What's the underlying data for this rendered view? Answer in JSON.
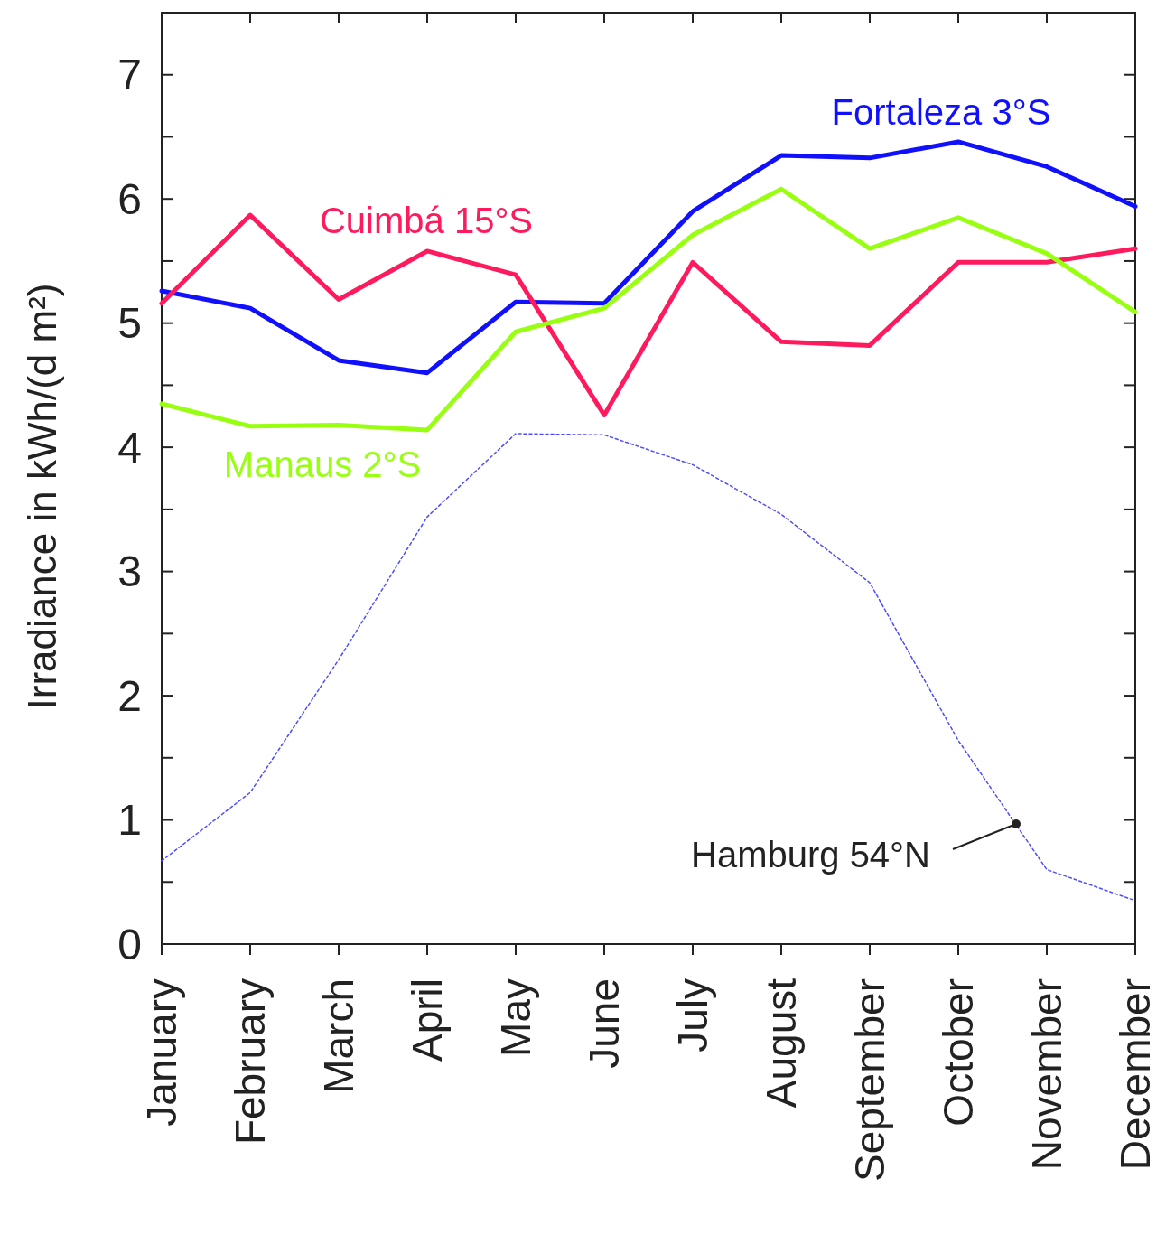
{
  "chart_data": {
    "type": "line",
    "ylabel": "Irradiance in kWh/(d m²)",
    "categories": [
      "January",
      "February",
      "March",
      "April",
      "May",
      "June",
      "July",
      "August",
      "September",
      "October",
      "November",
      "December"
    ],
    "ylim": [
      0,
      7.5
    ],
    "yticks": [
      0,
      {
        "value": 0.5,
        "label": null
      },
      1,
      {
        "value": 1.5,
        "label": null
      },
      2,
      {
        "value": 2.5,
        "label": null
      },
      3,
      {
        "value": 3.5,
        "label": null
      },
      4,
      {
        "value": 4.5,
        "label": null
      },
      5,
      {
        "value": 5.5,
        "label": null
      },
      6,
      {
        "value": 6.5,
        "label": null
      },
      7
    ],
    "grid": false,
    "marker": "none",
    "series": [
      {
        "name": "Fortaleza 3°S",
        "color": "#1010ff",
        "line_style": "solid",
        "values": [
          5.26,
          5.12,
          4.7,
          4.6,
          5.17,
          5.16,
          5.9,
          6.35,
          6.33,
          6.46,
          6.26,
          5.94
        ]
      },
      {
        "name": "Cuimbá 15°S",
        "color": "#ff1a5e",
        "line_style": "solid",
        "values": [
          5.16,
          5.87,
          5.19,
          5.58,
          5.39,
          4.26,
          5.49,
          4.85,
          4.82,
          5.49,
          5.49,
          5.6
        ]
      },
      {
        "name": "Manaus 2°S",
        "color": "#99ff11",
        "line_style": "solid",
        "values": [
          4.35,
          4.17,
          4.18,
          4.14,
          4.93,
          5.12,
          5.71,
          6.08,
          5.6,
          5.85,
          5.56,
          5.09
        ]
      },
      {
        "name": "Hamburg 54°N",
        "color": "#4d4dff",
        "line_style": "dotted",
        "values": [
          0.67,
          1.22,
          2.29,
          3.44,
          4.11,
          4.1,
          3.86,
          3.46,
          2.91,
          1.64,
          0.6,
          0.35
        ]
      }
    ]
  }
}
